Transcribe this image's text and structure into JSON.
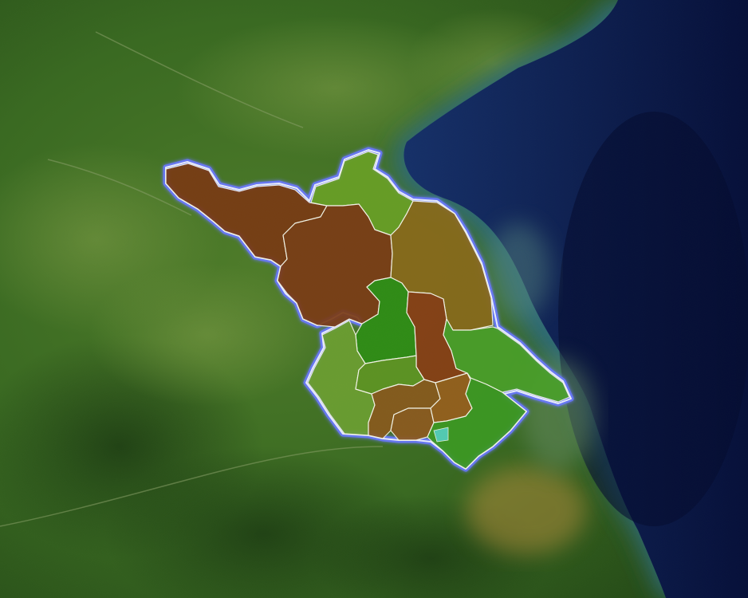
{
  "map": {
    "style": "satellite-imagery",
    "colors": {
      "land_dark": "#2f5a1e",
      "land_light": "#5c8a34",
      "sea_deep": "#0b1a4a",
      "coast_shallow": "#3f6f86",
      "outline_glow": "#5a68ff",
      "region_border": "#f4f4e8"
    },
    "regions": [
      {
        "id": "northwest",
        "fill": "#7a3a14"
      },
      {
        "id": "north-coast",
        "fill": "#6aa126"
      },
      {
        "id": "central-north",
        "fill": "#7c3b16"
      },
      {
        "id": "east-coast",
        "fill": "#8a6a1c"
      },
      {
        "id": "central",
        "fill": "#2f8e16"
      },
      {
        "id": "central-east",
        "fill": "#8a3e16"
      },
      {
        "id": "east",
        "fill": "#4aa02a"
      },
      {
        "id": "southwest",
        "fill": "#6da032"
      },
      {
        "id": "south-central-a",
        "fill": "#5f9624"
      },
      {
        "id": "south-central-b",
        "fill": "#8a5a1e"
      },
      {
        "id": "south-a",
        "fill": "#8e5a20"
      },
      {
        "id": "south-b",
        "fill": "#98601e"
      },
      {
        "id": "southeast",
        "fill": "#3d9a24"
      },
      {
        "id": "lake-marker",
        "fill": "#55d0c0"
      }
    ]
  }
}
